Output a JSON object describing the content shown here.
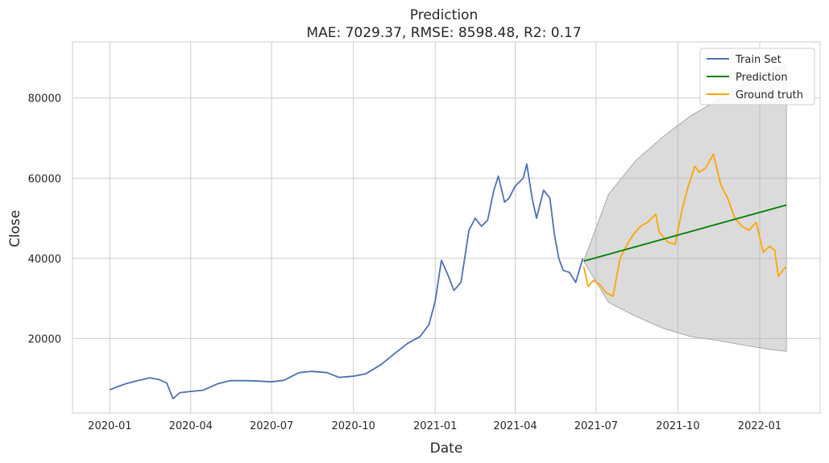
{
  "chart_data": {
    "type": "line",
    "title": "Prediction",
    "subtitle": "MAE: 7029.37, RMSE: 8598.48, R2: 0.17",
    "xlabel": "Date",
    "ylabel": "Close",
    "x_ticks": [
      "2020-01",
      "2020-04",
      "2020-07",
      "2020-10",
      "2021-01",
      "2021-04",
      "2021-07",
      "2021-10",
      "2022-01"
    ],
    "y_ticks": [
      20000,
      40000,
      60000,
      80000
    ],
    "xlim": [
      "2019-11-20",
      "2022-03-10"
    ],
    "ylim": [
      1400,
      94000
    ],
    "grid": true,
    "legend_position": "top-right",
    "series": [
      {
        "name": "Train Set",
        "color": "#4c72b0",
        "x": [
          "2020-01-01",
          "2020-01-10",
          "2020-01-20",
          "2020-02-01",
          "2020-02-15",
          "2020-02-25",
          "2020-03-05",
          "2020-03-12",
          "2020-03-20",
          "2020-04-01",
          "2020-04-15",
          "2020-05-01",
          "2020-05-15",
          "2020-06-01",
          "2020-06-15",
          "2020-07-01",
          "2020-07-15",
          "2020-08-01",
          "2020-08-15",
          "2020-09-01",
          "2020-09-15",
          "2020-10-01",
          "2020-10-15",
          "2020-11-01",
          "2020-11-15",
          "2020-12-01",
          "2020-12-15",
          "2020-12-25",
          "2021-01-01",
          "2021-01-08",
          "2021-01-15",
          "2021-01-22",
          "2021-01-30",
          "2021-02-08",
          "2021-02-15",
          "2021-02-22",
          "2021-03-01",
          "2021-03-08",
          "2021-03-13",
          "2021-03-20",
          "2021-03-25",
          "2021-04-01",
          "2021-04-10",
          "2021-04-14",
          "2021-04-20",
          "2021-04-25",
          "2021-05-03",
          "2021-05-10",
          "2021-05-15",
          "2021-05-20",
          "2021-05-25",
          "2021-06-01",
          "2021-06-08",
          "2021-06-12",
          "2021-06-16"
        ],
        "y": [
          7200,
          8000,
          8800,
          9500,
          10200,
          9800,
          8900,
          5000,
          6500,
          6800,
          7100,
          8700,
          9500,
          9500,
          9400,
          9200,
          9600,
          11500,
          11800,
          11500,
          10300,
          10600,
          11200,
          13500,
          16000,
          18800,
          20500,
          23500,
          29300,
          39500,
          36000,
          32000,
          34000,
          47000,
          50000,
          48000,
          49500,
          57000,
          60500,
          54000,
          55000,
          58000,
          60000,
          63500,
          55000,
          50000,
          57000,
          55000,
          46000,
          40000,
          37000,
          36500,
          34000,
          37000,
          40000
        ]
      },
      {
        "name": "Ground truth",
        "color": "#ffa500",
        "x": [
          "2021-06-17",
          "2021-06-22",
          "2021-06-28",
          "2021-07-05",
          "2021-07-12",
          "2021-07-20",
          "2021-07-28",
          "2021-08-05",
          "2021-08-12",
          "2021-08-20",
          "2021-08-28",
          "2021-09-06",
          "2021-09-10",
          "2021-09-20",
          "2021-09-28",
          "2021-10-05",
          "2021-10-12",
          "2021-10-20",
          "2021-10-25",
          "2021-11-01",
          "2021-11-10",
          "2021-11-18",
          "2021-11-26",
          "2021-12-04",
          "2021-12-12",
          "2021-12-20",
          "2021-12-28",
          "2022-01-05",
          "2022-01-12",
          "2022-01-18",
          "2022-01-22",
          "2022-01-27",
          "2022-01-31"
        ],
        "y": [
          38000,
          33000,
          34500,
          33500,
          31500,
          30500,
          40000,
          43500,
          46000,
          48000,
          49000,
          51000,
          46500,
          44000,
          43500,
          51500,
          57500,
          63000,
          61500,
          62500,
          66000,
          58500,
          55000,
          50000,
          48000,
          47000,
          49000,
          41500,
          43000,
          42000,
          35500,
          37000,
          38000
        ]
      },
      {
        "name": "Prediction",
        "color": "#008000",
        "x": [
          "2021-06-17",
          "2022-01-31"
        ],
        "y": [
          39300,
          53300
        ]
      }
    ],
    "confidence_band": {
      "color": "#b0b0b0",
      "x": [
        "2021-06-17",
        "2021-07-15",
        "2021-08-15",
        "2021-09-15",
        "2021-10-15",
        "2021-11-15",
        "2021-12-15",
        "2022-01-15",
        "2022-01-31"
      ],
      "upper": [
        39300,
        56000,
        64500,
        70500,
        75500,
        79500,
        83500,
        87000,
        88500
      ],
      "lower": [
        39300,
        29000,
        25500,
        22500,
        20500,
        19500,
        18300,
        17200,
        16800
      ]
    }
  }
}
